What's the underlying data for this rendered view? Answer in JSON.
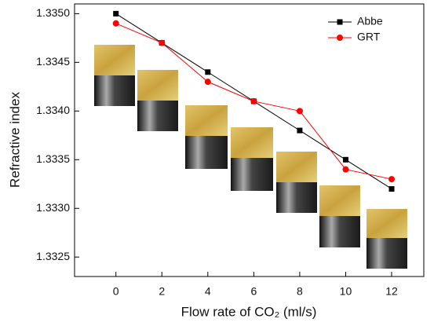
{
  "chart_data": {
    "type": "line",
    "x_label": "Flow rate of CO₂ (ml/s)",
    "y_label": "Refractive index",
    "x": [
      0,
      2,
      4,
      6,
      8,
      10,
      12
    ],
    "series": [
      {
        "name": "Abbe",
        "color": "#000000",
        "marker": "square",
        "values": [
          1.335,
          1.3347,
          1.3344,
          1.3341,
          1.3338,
          1.3335,
          1.3332
        ]
      },
      {
        "name": "GRT",
        "color": "#ff0000",
        "marker": "circle",
        "values": [
          1.3349,
          1.3347,
          1.3343,
          1.3341,
          1.334,
          1.3334,
          1.3333
        ]
      }
    ],
    "xlim": [
      -1.8,
      13.4
    ],
    "xticks": [
      0,
      2,
      4,
      6,
      8,
      10,
      12
    ],
    "ylim": [
      1.3323,
      1.3351
    ],
    "yticks": [
      {
        "value": 1.3325,
        "label": "1.3325"
      },
      {
        "value": 1.333,
        "label": "1.3330"
      },
      {
        "value": 1.3335,
        "label": "1.3335"
      },
      {
        "value": 1.334,
        "label": "1.3340"
      },
      {
        "value": 1.3345,
        "label": "1.3345"
      },
      {
        "value": 1.335,
        "label": "1.3350"
      }
    ],
    "legend": "upper right",
    "grid": false
  }
}
